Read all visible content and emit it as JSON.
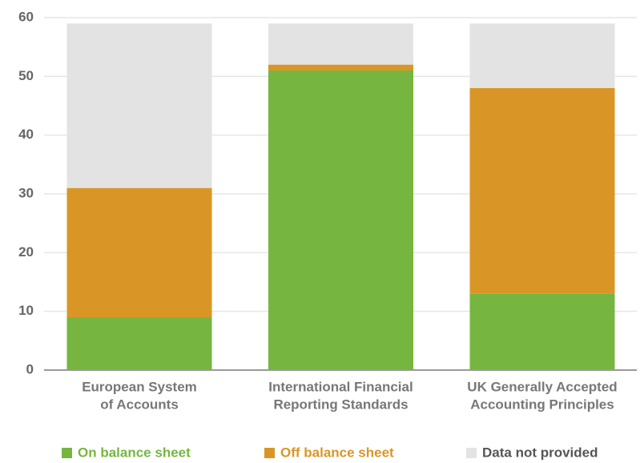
{
  "chart_data": {
    "type": "stacked_bar",
    "categories": [
      [
        "European System",
        "of Accounts"
      ],
      [
        "International Financial",
        "Reporting Standards"
      ],
      [
        "UK Generally Accepted",
        "Accounting Principles"
      ]
    ],
    "series": [
      {
        "name": "On balance sheet",
        "color": "#76b640",
        "values": [
          9,
          51,
          13
        ]
      },
      {
        "name": "Off balance sheet",
        "color": "#d99627",
        "values": [
          22,
          1,
          35
        ]
      },
      {
        "name": "Data not provided",
        "color": "#e3e3e3",
        "values": [
          28,
          7,
          11
        ]
      }
    ],
    "ylim": [
      0,
      60
    ],
    "yticks": [
      0,
      10,
      20,
      30,
      40,
      50,
      60
    ],
    "grid": true
  }
}
